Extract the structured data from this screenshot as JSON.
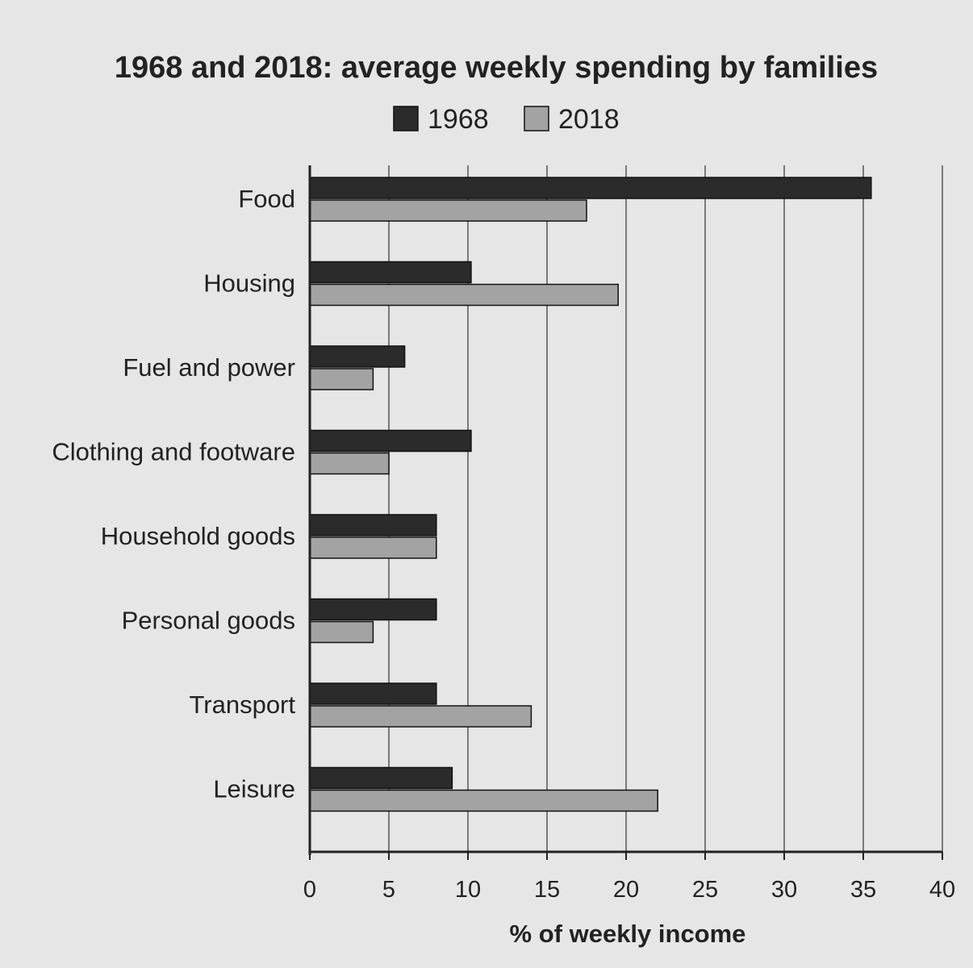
{
  "chart_data": {
    "type": "bar",
    "orientation": "horizontal",
    "title": "1968 and 2018: average weekly spending by families",
    "xlabel": "% of weekly income",
    "ylabel": "",
    "xlim": [
      0,
      40
    ],
    "xticks": [
      "0",
      "5",
      "10",
      "15",
      "20",
      "25",
      "30",
      "35",
      "40"
    ],
    "grid": true,
    "legend_position": "top-center",
    "categories": [
      "Food",
      "Housing",
      "Fuel and power",
      "Clothing and footware",
      "Household goods",
      "Personal goods",
      "Transport",
      "Leisure"
    ],
    "series": [
      {
        "name": "1968",
        "color": "#2b2b2b",
        "values": [
          35.5,
          10.2,
          6,
          10.2,
          8,
          8,
          8,
          9
        ]
      },
      {
        "name": "2018",
        "color": "#a3a3a3",
        "values": [
          17.5,
          19.5,
          4,
          5,
          8,
          4,
          14,
          22
        ]
      }
    ]
  }
}
